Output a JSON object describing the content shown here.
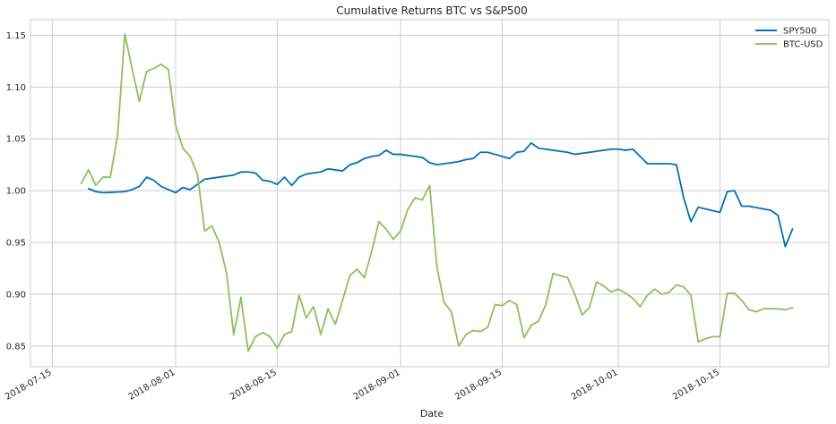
{
  "chart_data": {
    "type": "line",
    "title": "Cumulative Returns BTC vs S&P500",
    "xlabel": "Date",
    "ylabel": "",
    "grid": true,
    "legend_position": "top-right",
    "x_domain": [
      "2018-07-12",
      "2018-10-30"
    ],
    "y_domain": [
      0.83,
      1.165
    ],
    "x_ticks": [
      "2018-07-15",
      "2018-08-01",
      "2018-08-15",
      "2018-09-01",
      "2018-09-15",
      "2018-10-01",
      "2018-10-15"
    ],
    "y_ticks": [
      "0.85",
      "0.90",
      "0.95",
      "1.00",
      "1.05",
      "1.10",
      "1.15"
    ],
    "series": [
      {
        "name": "SPY500",
        "color": "#0072b2",
        "x": [
          "2018-07-20",
          "2018-07-21",
          "2018-07-22",
          "2018-07-25",
          "2018-07-26",
          "2018-07-27",
          "2018-07-28",
          "2018-07-29",
          "2018-07-30",
          "2018-08-01",
          "2018-08-02",
          "2018-08-03",
          "2018-08-05",
          "2018-08-06",
          "2018-08-07",
          "2018-08-08",
          "2018-08-09",
          "2018-08-10",
          "2018-08-11",
          "2018-08-12",
          "2018-08-13",
          "2018-08-14",
          "2018-08-15",
          "2018-08-16",
          "2018-08-17",
          "2018-08-18",
          "2018-08-19",
          "2018-08-20",
          "2018-08-21",
          "2018-08-22",
          "2018-08-23",
          "2018-08-24",
          "2018-08-25",
          "2018-08-26",
          "2018-08-27",
          "2018-08-28",
          "2018-08-29",
          "2018-08-30",
          "2018-08-31",
          "2018-09-01",
          "2018-09-02",
          "2018-09-03",
          "2018-09-04",
          "2018-09-05",
          "2018-09-06",
          "2018-09-07",
          "2018-09-08",
          "2018-09-09",
          "2018-09-10",
          "2018-09-11",
          "2018-09-12",
          "2018-09-13",
          "2018-09-14",
          "2018-09-15",
          "2018-09-16",
          "2018-09-17",
          "2018-09-18",
          "2018-09-19",
          "2018-09-20",
          "2018-09-21",
          "2018-09-22",
          "2018-09-23",
          "2018-09-24",
          "2018-09-25",
          "2018-09-26",
          "2018-09-27",
          "2018-09-28",
          "2018-09-29",
          "2018-09-30",
          "2018-10-01",
          "2018-10-02",
          "2018-10-03",
          "2018-10-04",
          "2018-10-05",
          "2018-10-08",
          "2018-10-09",
          "2018-10-10",
          "2018-10-11",
          "2018-10-12",
          "2018-10-15",
          "2018-10-16",
          "2018-10-17",
          "2018-10-18",
          "2018-10-19",
          "2018-10-22",
          "2018-10-23",
          "2018-10-24",
          "2018-10-25"
        ],
        "y": [
          1.002,
          0.999,
          0.998,
          0.999,
          1.001,
          1.004,
          1.013,
          1.01,
          1.004,
          0.998,
          1.003,
          1.001,
          1.011,
          1.012,
          1.013,
          1.014,
          1.015,
          1.018,
          1.018,
          1.017,
          1.01,
          1.009,
          1.006,
          1.013,
          1.005,
          1.013,
          1.016,
          1.017,
          1.018,
          1.021,
          1.02,
          1.019,
          1.025,
          1.027,
          1.031,
          1.033,
          1.034,
          1.039,
          1.035,
          1.035,
          1.034,
          1.033,
          1.032,
          1.027,
          1.025,
          1.026,
          1.027,
          1.028,
          1.03,
          1.031,
          1.037,
          1.037,
          1.035,
          1.033,
          1.031,
          1.037,
          1.038,
          1.046,
          1.041,
          1.04,
          1.039,
          1.038,
          1.037,
          1.035,
          1.036,
          1.037,
          1.038,
          1.039,
          1.04,
          1.04,
          1.039,
          1.04,
          1.033,
          1.026,
          1.026,
          1.025,
          0.993,
          0.97,
          0.984,
          0.979,
          0.999,
          1.0,
          0.985,
          0.985,
          0.981,
          0.976,
          0.946,
          0.963
        ]
      },
      {
        "name": "BTC-USD",
        "color": "#8dc05f",
        "x": [
          "2018-07-19",
          "2018-07-20",
          "2018-07-21",
          "2018-07-22",
          "2018-07-23",
          "2018-07-24",
          "2018-07-25",
          "2018-07-26",
          "2018-07-27",
          "2018-07-28",
          "2018-07-29",
          "2018-07-30",
          "2018-07-31",
          "2018-08-01",
          "2018-08-02",
          "2018-08-03",
          "2018-08-04",
          "2018-08-05",
          "2018-08-06",
          "2018-08-07",
          "2018-08-08",
          "2018-08-09",
          "2018-08-10",
          "2018-08-11",
          "2018-08-12",
          "2018-08-13",
          "2018-08-14",
          "2018-08-15",
          "2018-08-16",
          "2018-08-17",
          "2018-08-18",
          "2018-08-19",
          "2018-08-20",
          "2018-08-21",
          "2018-08-22",
          "2018-08-23",
          "2018-08-24",
          "2018-08-25",
          "2018-08-26",
          "2018-08-27",
          "2018-08-28",
          "2018-08-29",
          "2018-08-30",
          "2018-08-31",
          "2018-09-01",
          "2018-09-02",
          "2018-09-03",
          "2018-09-04",
          "2018-09-05",
          "2018-09-06",
          "2018-09-07",
          "2018-09-08",
          "2018-09-09",
          "2018-09-10",
          "2018-09-11",
          "2018-09-12",
          "2018-09-13",
          "2018-09-14",
          "2018-09-15",
          "2018-09-16",
          "2018-09-17",
          "2018-09-18",
          "2018-09-19",
          "2018-09-20",
          "2018-09-21",
          "2018-09-22",
          "2018-09-23",
          "2018-09-24",
          "2018-09-25",
          "2018-09-26",
          "2018-09-27",
          "2018-09-28",
          "2018-09-29",
          "2018-09-30",
          "2018-10-01",
          "2018-10-02",
          "2018-10-03",
          "2018-10-04",
          "2018-10-05",
          "2018-10-06",
          "2018-10-07",
          "2018-10-08",
          "2018-10-09",
          "2018-10-10",
          "2018-10-11",
          "2018-10-12",
          "2018-10-13",
          "2018-10-14",
          "2018-10-15",
          "2018-10-16",
          "2018-10-17",
          "2018-10-18",
          "2018-10-19",
          "2018-10-20",
          "2018-10-21",
          "2018-10-22",
          "2018-10-23",
          "2018-10-24",
          "2018-10-25"
        ],
        "y": [
          1.007,
          1.02,
          1.005,
          1.013,
          1.013,
          1.053,
          1.151,
          1.118,
          1.086,
          1.115,
          1.118,
          1.122,
          1.117,
          1.063,
          1.041,
          1.033,
          1.016,
          0.961,
          0.966,
          0.95,
          0.921,
          0.861,
          0.897,
          0.845,
          0.859,
          0.863,
          0.859,
          0.848,
          0.861,
          0.864,
          0.899,
          0.877,
          0.888,
          0.861,
          0.886,
          0.871,
          0.894,
          0.918,
          0.924,
          0.916,
          0.941,
          0.97,
          0.963,
          0.953,
          0.961,
          0.982,
          0.993,
          0.991,
          1.005,
          0.926,
          0.892,
          0.883,
          0.85,
          0.861,
          0.865,
          0.864,
          0.868,
          0.89,
          0.889,
          0.894,
          0.89,
          0.858,
          0.87,
          0.874,
          0.89,
          0.92,
          0.918,
          0.916,
          0.9,
          0.88,
          0.887,
          0.912,
          0.908,
          0.902,
          0.905,
          0.901,
          0.896,
          0.888,
          0.899,
          0.905,
          0.9,
          0.902,
          0.909,
          0.907,
          0.899,
          0.854,
          0.857,
          0.859,
          0.859,
          0.901,
          0.901,
          0.894,
          0.885,
          0.883,
          0.886,
          0.886,
          0.886,
          0.885,
          0.887
        ]
      }
    ]
  },
  "style": {
    "background": "#ffffff",
    "grid_color": "#cccccc",
    "spine_color": "#cccccc",
    "text_color": "#262626"
  }
}
